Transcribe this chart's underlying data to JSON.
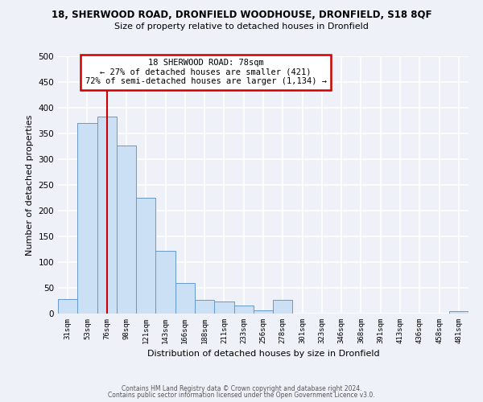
{
  "title_line1": "18, SHERWOOD ROAD, DRONFIELD WOODHOUSE, DRONFIELD, S18 8QF",
  "title_line2": "Size of property relative to detached houses in Dronfield",
  "xlabel": "Distribution of detached houses by size in Dronfield",
  "ylabel": "Number of detached properties",
  "bar_categories": [
    "31sqm",
    "53sqm",
    "76sqm",
    "98sqm",
    "121sqm",
    "143sqm",
    "166sqm",
    "188sqm",
    "211sqm",
    "233sqm",
    "256sqm",
    "278sqm",
    "301sqm",
    "323sqm",
    "346sqm",
    "368sqm",
    "391sqm",
    "413sqm",
    "436sqm",
    "458sqm",
    "481sqm"
  ],
  "bar_values": [
    28,
    370,
    383,
    327,
    225,
    122,
    59,
    27,
    23,
    16,
    7,
    27,
    0,
    0,
    0,
    0,
    0,
    0,
    0,
    0,
    5
  ],
  "bar_color": "#cce0f5",
  "bar_edge_color": "#6699cc",
  "property_line_x": 2.0,
  "ylim": [
    0,
    500
  ],
  "yticks": [
    0,
    50,
    100,
    150,
    200,
    250,
    300,
    350,
    400,
    450,
    500
  ],
  "annotation_title": "18 SHERWOOD ROAD: 78sqm",
  "annotation_line2": "← 27% of detached houses are smaller (421)",
  "annotation_line3": "72% of semi-detached houses are larger (1,134) →",
  "annotation_box_color": "#ffffff",
  "annotation_box_edge": "#cc0000",
  "red_line_color": "#cc0000",
  "footer_line1": "Contains HM Land Registry data © Crown copyright and database right 2024.",
  "footer_line2": "Contains public sector information licensed under the Open Government Licence v3.0.",
  "background_color": "#eef2f8",
  "grid_color": "#ffffff"
}
